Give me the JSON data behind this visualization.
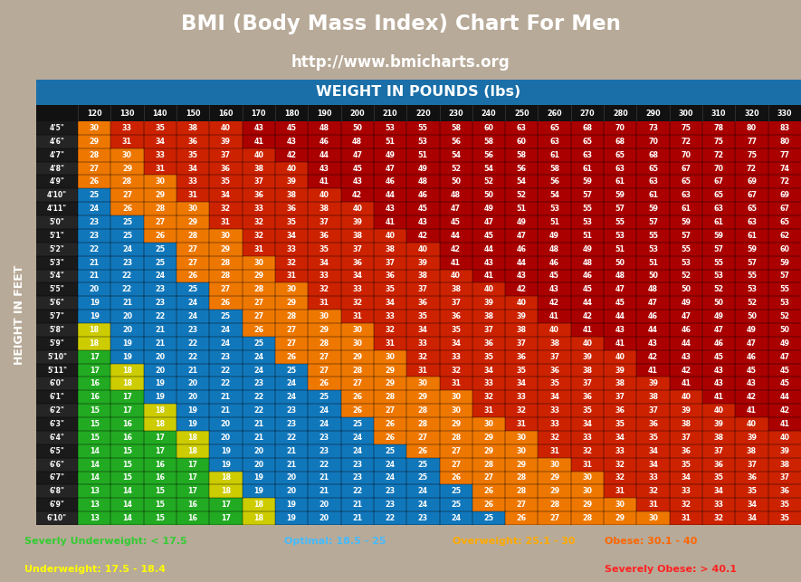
{
  "title": "BMI (Body Mass Index) Chart For Men",
  "subtitle": "http://www.bmicharts.org",
  "weight_header": "WEIGHT IN POUNDS (lbs)",
  "height_label": "HEIGHT IN FEET",
  "bg_color": "#b8aa98",
  "table_bg": "#1a6fa8",
  "cell_border": "#000000",
  "weights": [
    120,
    130,
    140,
    150,
    160,
    170,
    180,
    190,
    200,
    210,
    220,
    230,
    240,
    250,
    260,
    270,
    280,
    290,
    300,
    310,
    320,
    330
  ],
  "heights": [
    "4'5\"",
    "4'6\"",
    "4'7\"",
    "4'8\"",
    "4'9\"",
    "4'10\"",
    "4'11\"",
    "5'0\"",
    "5'1\"",
    "5'2\"",
    "5'3\"",
    "5'4\"",
    "5'5\"",
    "5'6\"",
    "5'7\"",
    "5'8\"",
    "5'9\"",
    "5'10\"",
    "5'11\"",
    "6'0\"",
    "6'1\"",
    "6'2\"",
    "6'3\"",
    "6'4\"",
    "6'5\"",
    "6'6\"",
    "6'7\"",
    "6'8\"",
    "6'9\"",
    "6'10\""
  ],
  "bmi_data": [
    [
      30,
      33,
      35,
      38,
      40,
      43,
      45,
      48,
      50,
      53,
      55,
      58,
      60,
      63,
      65,
      68,
      70,
      73,
      75,
      78,
      80,
      83
    ],
    [
      29,
      31,
      34,
      36,
      39,
      41,
      43,
      46,
      48,
      51,
      53,
      56,
      58,
      60,
      63,
      65,
      68,
      70,
      72,
      75,
      77,
      80
    ],
    [
      28,
      30,
      33,
      35,
      37,
      40,
      42,
      44,
      47,
      49,
      51,
      54,
      56,
      58,
      61,
      63,
      65,
      68,
      70,
      72,
      75,
      77
    ],
    [
      27,
      29,
      31,
      34,
      36,
      38,
      40,
      43,
      45,
      47,
      49,
      52,
      54,
      56,
      58,
      61,
      63,
      65,
      67,
      70,
      72,
      74
    ],
    [
      26,
      28,
      30,
      33,
      35,
      37,
      39,
      41,
      43,
      46,
      48,
      50,
      52,
      54,
      56,
      59,
      61,
      63,
      65,
      67,
      69,
      72
    ],
    [
      25,
      27,
      29,
      31,
      34,
      36,
      38,
      40,
      42,
      44,
      46,
      48,
      50,
      52,
      54,
      57,
      59,
      61,
      63,
      65,
      67,
      69
    ],
    [
      24,
      26,
      28,
      30,
      32,
      33,
      36,
      38,
      40,
      43,
      45,
      47,
      49,
      51,
      53,
      55,
      57,
      59,
      61,
      63,
      65,
      67
    ],
    [
      23,
      25,
      27,
      29,
      31,
      32,
      35,
      37,
      39,
      41,
      43,
      45,
      47,
      49,
      51,
      53,
      55,
      57,
      59,
      61,
      63,
      65
    ],
    [
      23,
      25,
      26,
      28,
      30,
      32,
      34,
      36,
      38,
      40,
      42,
      44,
      45,
      47,
      49,
      51,
      53,
      55,
      57,
      59,
      61,
      62
    ],
    [
      22,
      24,
      25,
      27,
      29,
      31,
      33,
      35,
      37,
      38,
      40,
      42,
      44,
      46,
      48,
      49,
      51,
      53,
      55,
      57,
      59,
      60
    ],
    [
      21,
      23,
      25,
      27,
      28,
      30,
      32,
      34,
      36,
      37,
      39,
      41,
      43,
      44,
      46,
      48,
      50,
      51,
      53,
      55,
      57,
      59
    ],
    [
      21,
      22,
      24,
      26,
      28,
      29,
      31,
      33,
      34,
      36,
      38,
      40,
      41,
      43,
      45,
      46,
      48,
      50,
      52,
      53,
      55,
      57
    ],
    [
      20,
      22,
      23,
      25,
      27,
      28,
      30,
      32,
      33,
      35,
      37,
      38,
      40,
      42,
      43,
      45,
      47,
      48,
      50,
      52,
      53,
      55
    ],
    [
      19,
      21,
      23,
      24,
      26,
      27,
      29,
      31,
      32,
      34,
      36,
      37,
      39,
      40,
      42,
      44,
      45,
      47,
      49,
      50,
      52,
      53
    ],
    [
      19,
      20,
      22,
      24,
      25,
      27,
      28,
      30,
      31,
      33,
      35,
      36,
      38,
      39,
      41,
      42,
      44,
      46,
      47,
      49,
      50,
      52
    ],
    [
      18,
      20,
      21,
      23,
      24,
      26,
      27,
      29,
      30,
      32,
      34,
      35,
      37,
      38,
      40,
      41,
      43,
      44,
      46,
      47,
      49,
      50
    ],
    [
      18,
      19,
      21,
      22,
      24,
      25,
      27,
      28,
      30,
      31,
      33,
      34,
      36,
      37,
      38,
      40,
      41,
      43,
      44,
      46,
      47,
      49
    ],
    [
      17,
      19,
      20,
      22,
      23,
      24,
      26,
      27,
      29,
      30,
      32,
      33,
      35,
      36,
      37,
      39,
      40,
      42,
      43,
      45,
      46,
      47
    ],
    [
      17,
      18,
      20,
      21,
      22,
      24,
      25,
      27,
      28,
      29,
      31,
      32,
      34,
      35,
      36,
      38,
      39,
      41,
      42,
      43,
      45,
      45
    ],
    [
      16,
      18,
      19,
      20,
      22,
      23,
      24,
      26,
      27,
      29,
      30,
      31,
      33,
      34,
      35,
      37,
      38,
      39,
      41,
      43,
      43,
      45
    ],
    [
      16,
      17,
      19,
      20,
      21,
      22,
      24,
      25,
      26,
      28,
      29,
      30,
      32,
      33,
      34,
      36,
      37,
      38,
      40,
      41,
      42,
      44
    ],
    [
      15,
      17,
      18,
      19,
      21,
      22,
      23,
      24,
      26,
      27,
      28,
      30,
      31,
      32,
      33,
      35,
      36,
      37,
      39,
      40,
      41,
      42
    ],
    [
      15,
      16,
      18,
      19,
      20,
      21,
      23,
      24,
      25,
      26,
      28,
      29,
      30,
      31,
      33,
      34,
      35,
      36,
      38,
      39,
      40,
      41
    ],
    [
      15,
      16,
      17,
      18,
      20,
      21,
      22,
      23,
      24,
      26,
      27,
      28,
      29,
      30,
      32,
      33,
      34,
      35,
      37,
      38,
      39,
      40
    ],
    [
      14,
      15,
      17,
      18,
      19,
      20,
      21,
      23,
      24,
      25,
      26,
      27,
      29,
      30,
      31,
      32,
      33,
      34,
      36,
      37,
      38,
      39
    ],
    [
      14,
      15,
      16,
      17,
      19,
      20,
      21,
      22,
      23,
      24,
      25,
      27,
      28,
      29,
      30,
      31,
      32,
      34,
      35,
      36,
      37,
      38
    ],
    [
      14,
      15,
      16,
      17,
      18,
      19,
      20,
      21,
      23,
      24,
      25,
      26,
      27,
      28,
      29,
      30,
      32,
      33,
      34,
      35,
      36,
      37
    ],
    [
      13,
      14,
      15,
      17,
      18,
      19,
      20,
      21,
      22,
      23,
      24,
      25,
      26,
      28,
      29,
      30,
      31,
      32,
      33,
      34,
      35,
      36
    ],
    [
      13,
      14,
      15,
      16,
      17,
      18,
      19,
      20,
      21,
      23,
      24,
      25,
      26,
      27,
      28,
      29,
      30,
      31,
      32,
      33,
      34,
      35
    ],
    [
      13,
      14,
      15,
      16,
      17,
      18,
      19,
      20,
      21,
      22,
      23,
      24,
      25,
      26,
      27,
      28,
      29,
      30,
      31,
      32,
      34,
      35
    ]
  ],
  "color_severely_underweight": "#22aa22",
  "color_underweight": "#cccc00",
  "color_optimal": "#1177bb",
  "color_overweight": "#ee7700",
  "color_obese": "#cc2200",
  "color_severely_obese": "#aa0000",
  "legend_bg": "#111111",
  "legend": [
    {
      "label": "Severly Underweight: < 17.5",
      "color": "#33cc33",
      "row": 0,
      "col": 0
    },
    {
      "label": "Optimal: 18.5 - 25",
      "color": "#44bbff",
      "row": 0,
      "col": 1
    },
    {
      "label": "Overweight: 25.1 - 30",
      "color": "#ffaa00",
      "row": 0,
      "col": 2
    },
    {
      "label": "Obese: 30.1 - 40",
      "color": "#ff6600",
      "row": 0,
      "col": 3
    },
    {
      "label": "Underweight: 17.5 - 18.4",
      "color": "#ffff00",
      "row": 1,
      "col": 0
    },
    {
      "label": "Severely Obese: > 40.1",
      "color": "#ff2222",
      "row": 1,
      "col": 3
    }
  ]
}
